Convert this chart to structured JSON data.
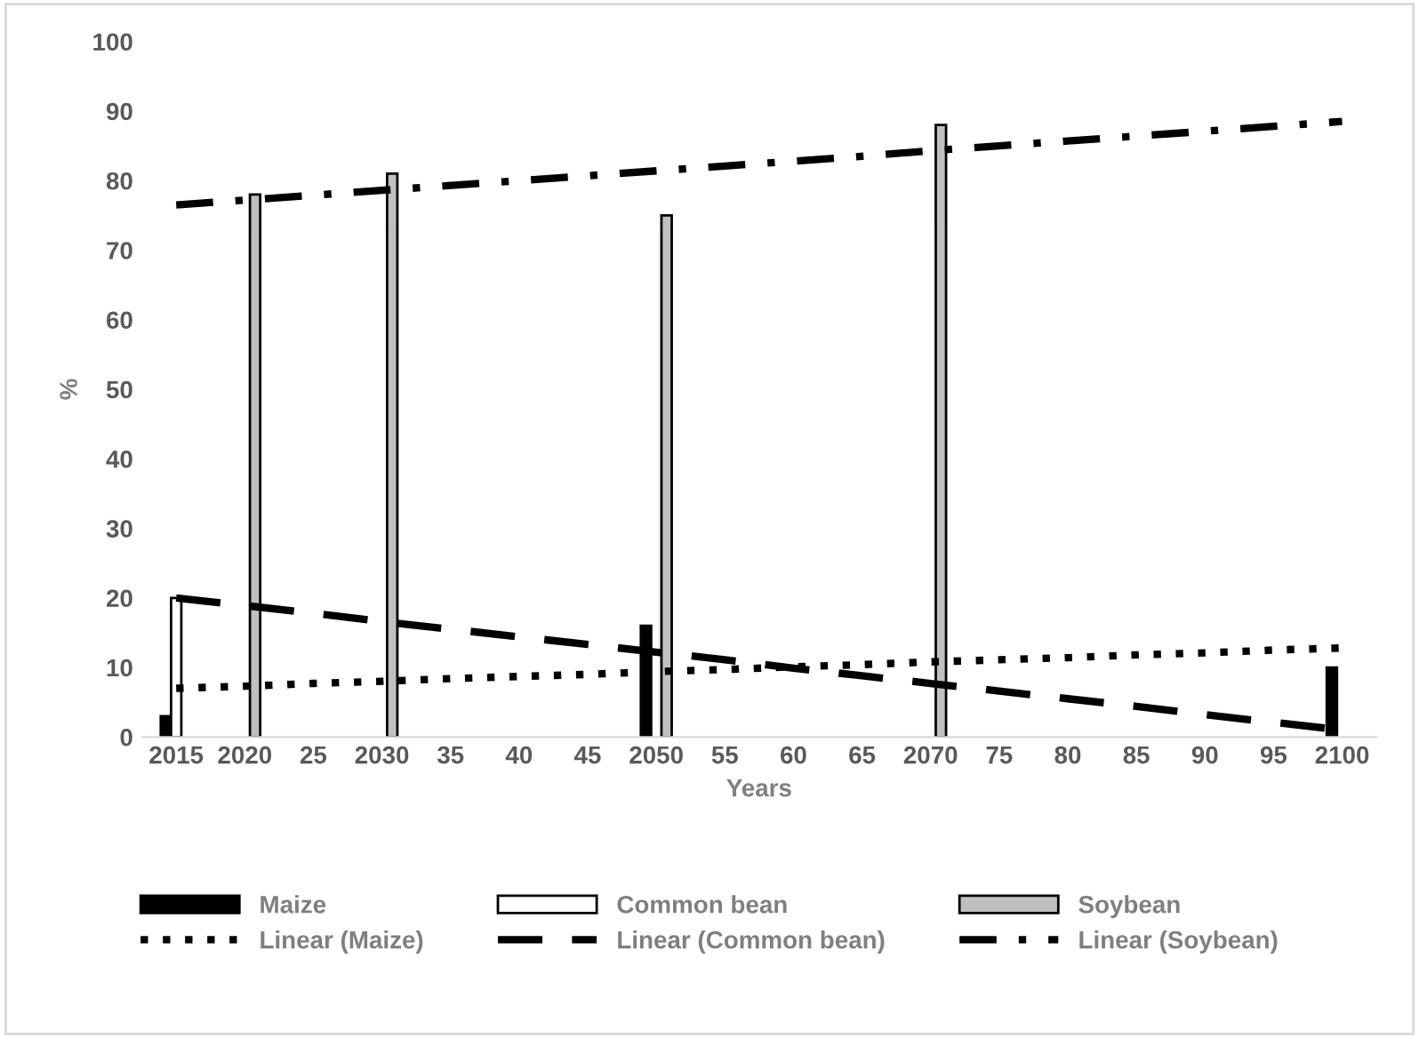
{
  "chart_data": {
    "type": "bar",
    "xlabel": "Years",
    "ylabel": "%",
    "categories": [
      "2015",
      "2020",
      "25",
      "2030",
      "35",
      "40",
      "45",
      "2050",
      "55",
      "60",
      "65",
      "2070",
      "75",
      "80",
      "85",
      "90",
      "95",
      "2100"
    ],
    "series": [
      {
        "name": "Maize",
        "color": "#000000",
        "values": [
          3,
          null,
          null,
          null,
          null,
          null,
          null,
          16,
          null,
          null,
          null,
          null,
          null,
          null,
          null,
          null,
          null,
          10
        ]
      },
      {
        "name": "Common bean",
        "color": "#ffffff",
        "values": [
          20,
          null,
          null,
          null,
          null,
          null,
          null,
          null,
          null,
          null,
          null,
          null,
          null,
          null,
          null,
          null,
          null,
          null
        ]
      },
      {
        "name": "Soybean",
        "color": "#c0c0c0",
        "values": [
          null,
          78,
          null,
          81,
          null,
          null,
          null,
          75,
          null,
          null,
          null,
          88,
          null,
          null,
          null,
          null,
          null,
          null
        ]
      },
      {
        "name": "Linear (Maize)",
        "type": "line",
        "line_style": "dotted",
        "color": "#000000",
        "values": [
          7,
          7.3,
          7.7,
          8,
          8.4,
          8.7,
          9,
          9.4,
          9.7,
          10.1,
          10.4,
          10.8,
          11.1,
          11.4,
          11.8,
          12.1,
          12.5,
          12.8
        ]
      },
      {
        "name": "Linear (Common bean)",
        "type": "line",
        "line_style": "dashed",
        "color": "#000000",
        "values": [
          20,
          18.9,
          17.8,
          16.6,
          15.5,
          14.4,
          13.3,
          12.2,
          11.1,
          9.9,
          8.8,
          7.7,
          6.6,
          5.5,
          4.4,
          3.2,
          2.1,
          1
        ]
      },
      {
        "name": "Linear (Soybean)",
        "type": "line",
        "line_style": "dashdot",
        "color": "#000000",
        "values": [
          76.5,
          77.2,
          77.9,
          78.6,
          79.3,
          80,
          80.7,
          81.4,
          82.1,
          82.8,
          83.5,
          84.3,
          85,
          85.7,
          86.4,
          87.1,
          87.8,
          88.5
        ]
      }
    ],
    "ylim": [
      0,
      100
    ],
    "yticks": [
      0,
      10,
      20,
      30,
      40,
      50,
      60,
      70,
      80,
      90,
      100
    ],
    "grid": false,
    "legend": "bottom"
  }
}
